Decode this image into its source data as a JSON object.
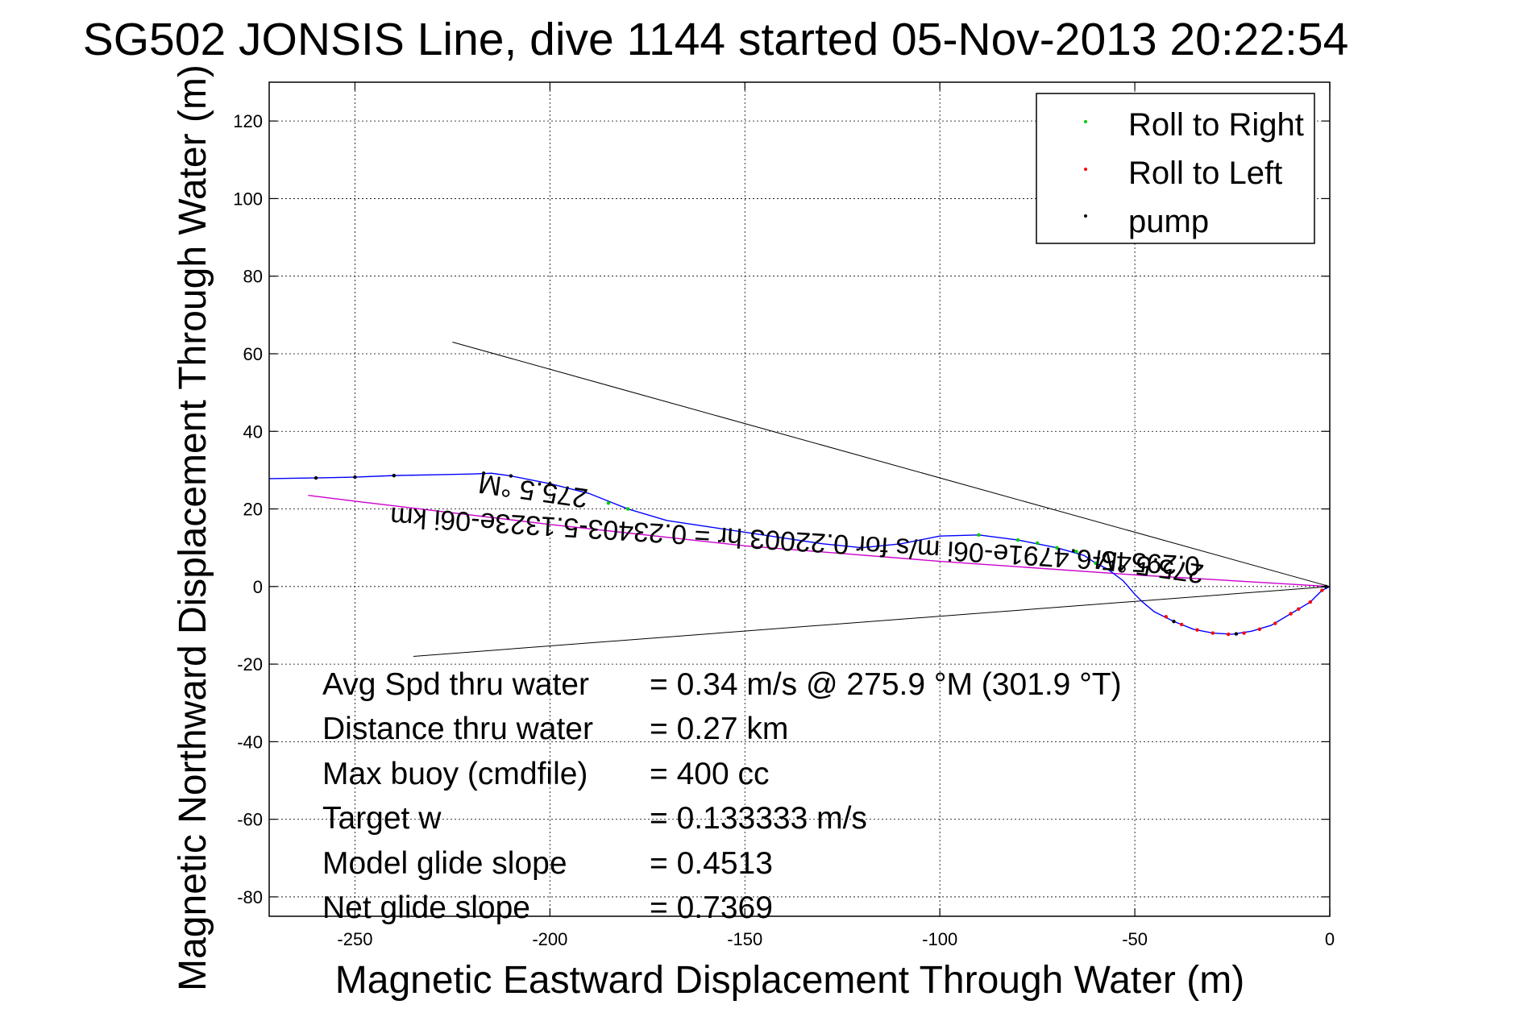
{
  "chart_data": {
    "type": "line",
    "title": "SG502 JONSIS Line, dive 1144 started 05-Nov-2013 20:22:54",
    "xlabel": "Magnetic Eastward Displacement Through Water (m)",
    "ylabel": "Magnetic Northward Displacement Through Water (m)",
    "xlim": [
      -272,
      0
    ],
    "ylim": [
      -85,
      130
    ],
    "xticks": [
      -250,
      -200,
      -150,
      -100,
      -50,
      0
    ],
    "yticks": [
      -80,
      -60,
      -40,
      -20,
      0,
      20,
      40,
      60,
      80,
      100,
      120
    ],
    "grid": true,
    "legend_position": "top-right",
    "legend": [
      "Roll to Right",
      "Roll to Left",
      "pump"
    ],
    "colors": {
      "track": "#0000ff",
      "heading_line": "#cc00cc",
      "roll_right": "#00cc00",
      "roll_left": "#ff0000",
      "pump": "#000000",
      "cone": "#000000"
    },
    "track": {
      "x": [
        0,
        -2,
        -5,
        -10,
        -15,
        -20,
        -25,
        -30,
        -35,
        -40,
        -45,
        -48,
        -50,
        -53,
        -57,
        -60,
        -63,
        -70,
        -80,
        -90,
        -100,
        -110,
        -120,
        -130,
        -140,
        -150,
        -160,
        -170,
        -180,
        -190,
        -200,
        -210,
        -215,
        -220,
        -230,
        -240,
        -250,
        -260,
        -272
      ],
      "y": [
        0,
        -1,
        -4,
        -7,
        -10,
        -11.5,
        -12.3,
        -12,
        -11,
        -9,
        -6.5,
        -4,
        -2,
        1.5,
        4.5,
        6,
        8,
        10,
        12,
        13.3,
        13,
        11,
        10,
        11,
        12.5,
        14,
        15.5,
        17,
        20,
        24,
        26.5,
        28.5,
        29.2,
        29,
        28.8,
        28.6,
        28.2,
        28,
        27.8
      ]
    },
    "heading_line": {
      "x": [
        0,
        -50,
        -100,
        -150,
        -200,
        -250,
        -262
      ],
      "y": [
        0,
        3,
        6.5,
        10.5,
        16,
        22,
        23.5
      ]
    },
    "cone_upper": {
      "x": [
        0,
        -225
      ],
      "y": [
        0,
        63
      ]
    },
    "cone_lower": {
      "x": [
        0,
        -235
      ],
      "y": [
        0,
        -18
      ]
    },
    "markers": {
      "roll_right": {
        "x": [
          -90,
          -80,
          -75,
          -70,
          -65,
          -60,
          -180,
          -185
        ],
        "y": [
          13.3,
          12,
          11.2,
          10,
          9,
          6,
          20,
          21.5
        ]
      },
      "roll_left": {
        "x": [
          -2,
          -5,
          -8,
          -10,
          -14,
          -18,
          -22,
          -26,
          -30,
          -34,
          -38,
          -42
        ],
        "y": [
          -1,
          -4,
          -5.8,
          -7,
          -9.5,
          -11,
          -12,
          -12.3,
          -12,
          -11.2,
          -9.8,
          -7.8
        ]
      },
      "pump": {
        "x": [
          -1,
          -24,
          -40,
          -200,
          -210,
          -217,
          -240,
          -250,
          -260
        ],
        "y": [
          0,
          -12.2,
          -9,
          26.5,
          28.5,
          29.2,
          28.6,
          28.2,
          28
        ]
      }
    },
    "flipped_labels": [
      {
        "text": "0.29545-6.4791e-06i m/s for 0.22003 hr = 0.23403-5.1323e-06i km",
        "x": -137,
        "y": 14,
        "angle": 3.5
      },
      {
        "text": "275.5 °M",
        "x": -204,
        "y": 27,
        "angle": 8
      },
      {
        "text": "275.5 °M",
        "x": -46,
        "y": 7.5,
        "angle": 8
      }
    ],
    "annotations": [
      {
        "label": "Avg Spd thru water",
        "value": "=  0.34 m/s @ 275.9 °M (301.9 °T)"
      },
      {
        "label": "Distance thru water",
        "value": "=  0.27 km"
      },
      {
        "label": "Max buoy (cmdfile)",
        "value": "= 400 cc"
      },
      {
        "label": "Target w",
        "value": "= 0.133333 m/s"
      },
      {
        "label": "Model glide slope",
        "value": "= 0.4513"
      },
      {
        "label": "Net glide slope",
        "value": "= 0.7369"
      }
    ]
  }
}
